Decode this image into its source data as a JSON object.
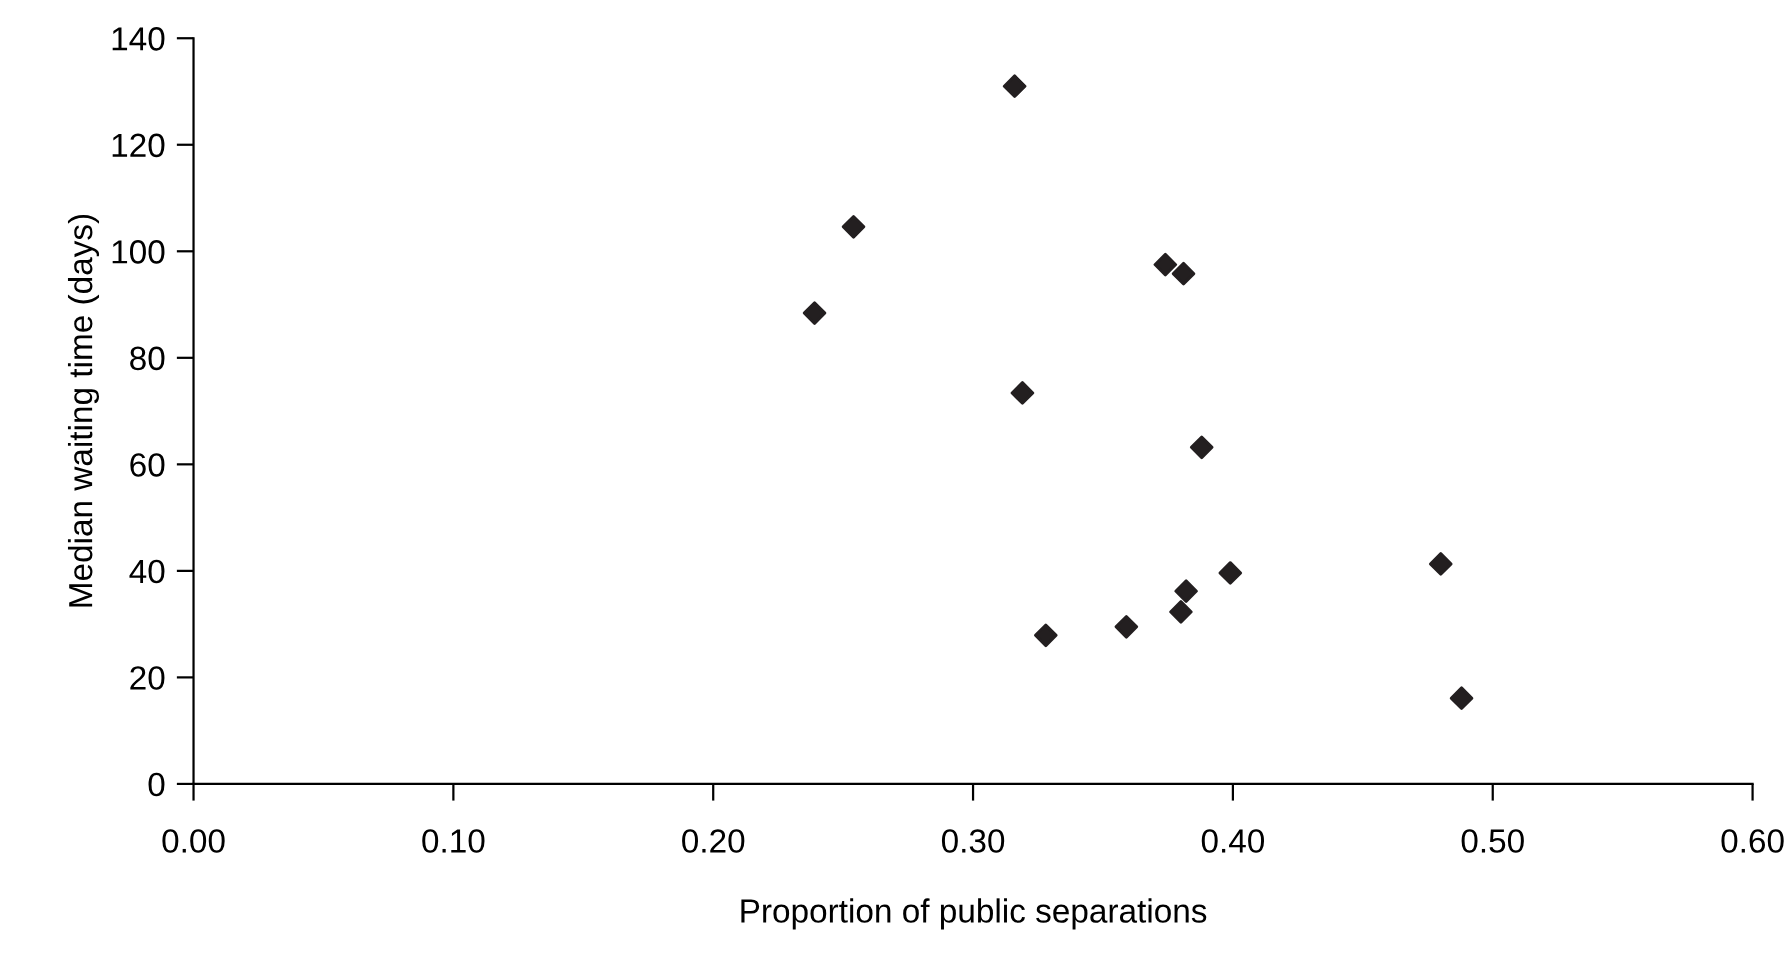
{
  "chart_data": {
    "type": "scatter",
    "xlabel": "Proportion of public separations",
    "ylabel": "Median waiting time (days)",
    "x": [
      0.239,
      0.254,
      0.316,
      0.319,
      0.374,
      0.381,
      0.388,
      0.328,
      0.359,
      0.38,
      0.382,
      0.399,
      0.48,
      0.488
    ],
    "series": [
      {
        "color": "#231f20",
        "values": [
          88.4,
          104.6,
          131,
          73.4,
          97.5,
          95.8,
          63.2,
          27.9,
          29.5,
          32.3,
          36.2,
          39.6,
          41.3,
          16.1
        ]
      }
    ],
    "xlim": [
      0,
      0.6
    ],
    "ylim": [
      0,
      140
    ],
    "xticks": [
      {
        "value": 0,
        "label": "0.00"
      },
      {
        "value": 0.1,
        "label": "0.10"
      },
      {
        "value": 0.2,
        "label": "0.20"
      },
      {
        "value": 0.3,
        "label": "0.30"
      },
      {
        "value": 0.4,
        "label": "0.40"
      },
      {
        "value": 0.5,
        "label": "0.50"
      },
      {
        "value": 0.6,
        "label": "0.60"
      }
    ],
    "yticks": [
      0,
      20,
      40,
      60,
      80,
      100,
      120,
      140
    ],
    "grid": false,
    "legend": false,
    "marker": "diamond"
  }
}
